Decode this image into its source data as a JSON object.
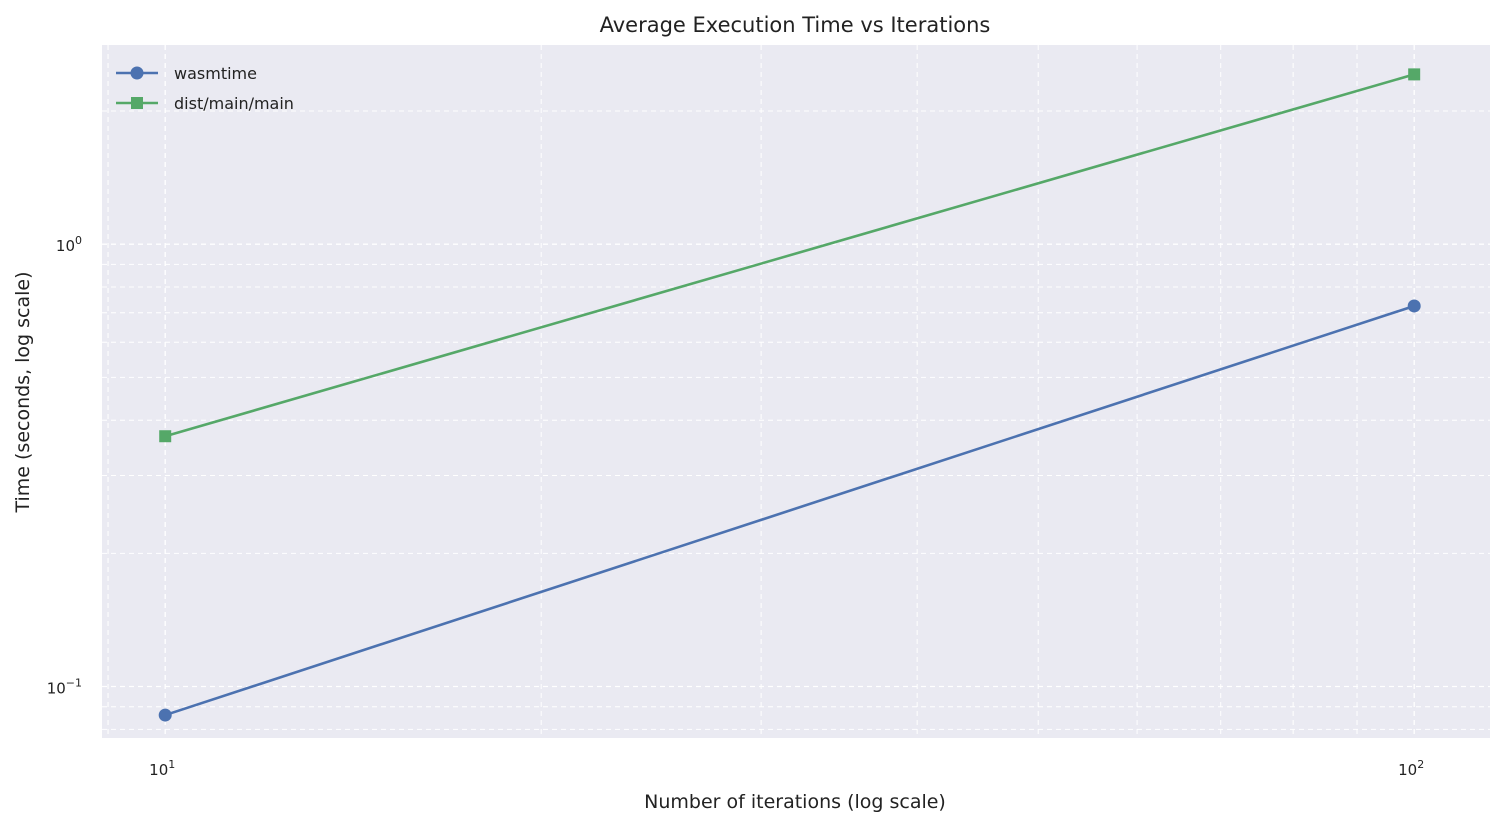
{
  "chart_data": {
    "type": "line",
    "title": "Average Execution Time vs Iterations",
    "xlabel": "Number of iterations (log scale)",
    "ylabel": "Time (seconds, log scale)",
    "xscale": "log",
    "yscale": "log",
    "xlim": [
      8.9,
      115
    ],
    "ylim": [
      0.0765,
      2.82
    ],
    "grid": true,
    "grid_style": "dashed",
    "background": "#eaeaf2",
    "legend_position": "top-left",
    "x_ticks": [
      {
        "value": 10,
        "base": "10",
        "exp": "1"
      },
      {
        "value": 100,
        "base": "10",
        "exp": "2"
      }
    ],
    "y_ticks": [
      {
        "value": 0.1,
        "base": "10",
        "exp": "−1"
      },
      {
        "value": 1,
        "base": "10",
        "exp": "0"
      }
    ],
    "x": [
      10,
      100
    ],
    "series": [
      {
        "name": "wasmtime",
        "values": [
          0.0862,
          0.725
        ],
        "color": "#4c72b0",
        "marker": "circle"
      },
      {
        "name": "dist/main/main",
        "values": [
          0.368,
          2.42
        ],
        "color": "#55a868",
        "marker": "square"
      }
    ]
  }
}
